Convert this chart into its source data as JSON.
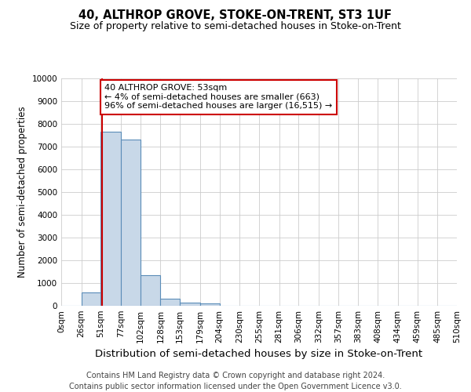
{
  "title": "40, ALTHROP GROVE, STOKE-ON-TRENT, ST3 1UF",
  "subtitle": "Size of property relative to semi-detached houses in Stoke-on-Trent",
  "xlabel": "Distribution of semi-detached houses by size in Stoke-on-Trent",
  "ylabel": "Number of semi-detached properties",
  "footer_line1": "Contains HM Land Registry data © Crown copyright and database right 2024.",
  "footer_line2": "Contains public sector information licensed under the Open Government Licence v3.0.",
  "annotation_title": "40 ALTHROP GROVE: 53sqm",
  "annotation_line1": "← 4% of semi-detached houses are smaller (663)",
  "annotation_line2": "96% of semi-detached houses are larger (16,515) →",
  "property_size": 53,
  "bar_edges": [
    0,
    26,
    51,
    77,
    102,
    128,
    153,
    179,
    204,
    230,
    255,
    281,
    306,
    332,
    357,
    383,
    408,
    434,
    459,
    485,
    510
  ],
  "bar_heights": [
    0,
    600,
    7650,
    7300,
    1350,
    320,
    130,
    90,
    0,
    0,
    0,
    0,
    0,
    0,
    0,
    0,
    0,
    0,
    0,
    0
  ],
  "bar_color": "#c8d8e8",
  "bar_edge_color": "#5b8db8",
  "marker_line_color": "#cc0000",
  "annotation_box_color": "#cc0000",
  "background_color": "#ffffff",
  "ylim": [
    0,
    10000
  ],
  "yticks": [
    0,
    1000,
    2000,
    3000,
    4000,
    5000,
    6000,
    7000,
    8000,
    9000,
    10000
  ],
  "xtick_labels": [
    "0sqm",
    "26sqm",
    "51sqm",
    "77sqm",
    "102sqm",
    "128sqm",
    "153sqm",
    "179sqm",
    "204sqm",
    "230sqm",
    "255sqm",
    "281sqm",
    "306sqm",
    "332sqm",
    "357sqm",
    "383sqm",
    "408sqm",
    "434sqm",
    "459sqm",
    "485sqm",
    "510sqm"
  ],
  "grid_color": "#cccccc",
  "title_fontsize": 10.5,
  "subtitle_fontsize": 9,
  "xlabel_fontsize": 9.5,
  "ylabel_fontsize": 8.5,
  "tick_fontsize": 7.5,
  "footer_fontsize": 7,
  "annotation_fontsize": 8
}
